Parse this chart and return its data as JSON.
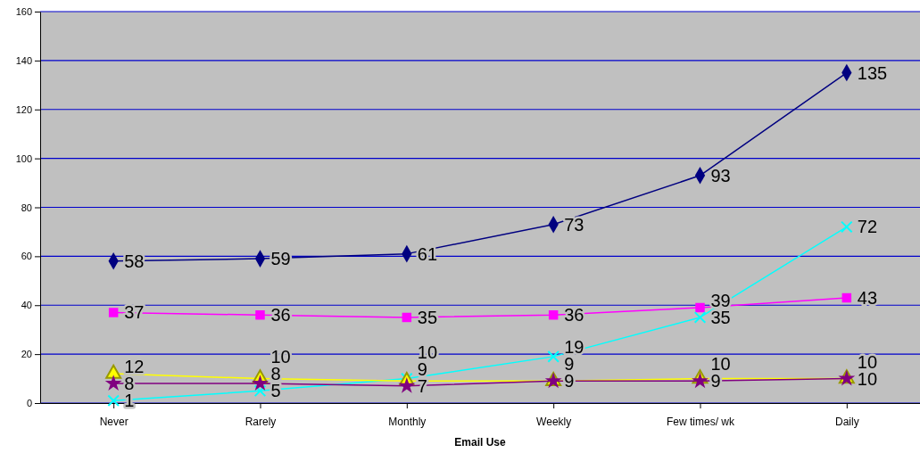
{
  "chart_data": {
    "type": "line",
    "xlabel": "Email Use",
    "categories": [
      "Never",
      "Rarely",
      "Monthly",
      "Weekly",
      "Few times/ wk",
      "Daily"
    ],
    "ylim": [
      0,
      160
    ],
    "yticks": [
      0,
      20,
      40,
      60,
      80,
      100,
      120,
      140,
      160
    ],
    "grid": "y",
    "data_labels": true,
    "series": [
      {
        "color": "#000080",
        "marker": "diamond",
        "values": [
          58,
          59,
          61,
          73,
          93,
          135
        ]
      },
      {
        "color": "#ff00ff",
        "marker": "square",
        "values": [
          37,
          36,
          35,
          36,
          39,
          43
        ]
      },
      {
        "color": "#00ffff",
        "marker": "cross",
        "values": [
          1,
          5,
          10,
          19,
          35,
          72
        ]
      },
      {
        "color": "#ffff00",
        "marker": "triangle",
        "values": [
          12,
          10,
          9,
          9,
          10,
          10
        ]
      },
      {
        "color": "#800080",
        "marker": "star",
        "values": [
          8,
          8,
          7,
          9,
          9,
          10
        ]
      }
    ]
  }
}
